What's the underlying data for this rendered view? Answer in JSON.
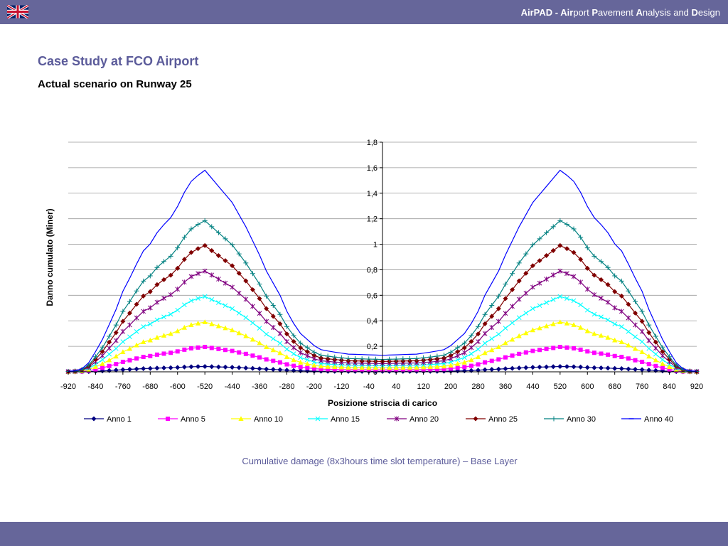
{
  "header": {
    "brand_segments": [
      {
        "text": "AirPAD - ",
        "bold": true
      },
      {
        "text": "Air",
        "bold": true
      },
      {
        "text": "port ",
        "bold": false
      },
      {
        "text": "P",
        "bold": true
      },
      {
        "text": "avement ",
        "bold": false
      },
      {
        "text": "A",
        "bold": true
      },
      {
        "text": "nalysis and ",
        "bold": false
      },
      {
        "text": "D",
        "bold": true
      },
      {
        "text": "esign",
        "bold": false
      }
    ],
    "flag_icon": "uk-flag-icon"
  },
  "page": {
    "title": "Case Study at FCO Airport",
    "subtitle": "Actual scenario on Runway 25",
    "caption": "Cumulative damage (8x3hours time slot temperature) – Base Layer"
  },
  "colors": {
    "bar": "#66669a",
    "title": "#5b5b9a"
  },
  "chart_data": {
    "type": "line",
    "xlabel": "Posizione striscia di carico",
    "ylabel": "Danno cumulato (Miner)",
    "xlim": [
      -920,
      920
    ],
    "ylim": [
      0,
      1.8
    ],
    "x_ticks": [
      -920,
      -840,
      -760,
      -680,
      -600,
      -520,
      -440,
      -360,
      -280,
      -200,
      -120,
      -40,
      40,
      120,
      200,
      280,
      360,
      440,
      520,
      600,
      680,
      760,
      840,
      920
    ],
    "y_ticks": [
      {
        "v": 0,
        "label": "0"
      },
      {
        "v": 0.2,
        "label": "0,2"
      },
      {
        "v": 0.4,
        "label": "0,4"
      },
      {
        "v": 0.6,
        "label": "0,6"
      },
      {
        "v": 0.8,
        "label": "0,8"
      },
      {
        "v": 1,
        "label": "1"
      },
      {
        "v": 1.2,
        "label": "1,2"
      },
      {
        "v": 1.4,
        "label": "1,4"
      },
      {
        "v": 1.6,
        "label": "1,6"
      },
      {
        "v": 1.8,
        "label": "1,8"
      }
    ],
    "grid": "horizontal",
    "legend_position": "bottom",
    "x_step": 20,
    "profile_x": [
      0,
      100,
      150,
      180,
      200,
      220,
      240,
      260,
      280,
      300,
      320,
      340,
      360,
      380,
      400,
      420,
      440,
      460,
      480,
      500,
      520,
      540,
      560,
      580,
      600,
      620,
      640,
      660,
      680,
      700,
      720,
      740,
      760,
      780,
      800,
      820,
      840,
      860,
      880,
      900,
      920
    ],
    "profile_y": [
      0.082,
      0.088,
      0.1,
      0.11,
      0.13,
      0.16,
      0.19,
      0.24,
      0.3,
      0.38,
      0.44,
      0.5,
      0.58,
      0.65,
      0.72,
      0.78,
      0.84,
      0.88,
      0.92,
      0.96,
      1.0,
      0.975,
      0.945,
      0.89,
      0.82,
      0.765,
      0.73,
      0.69,
      0.635,
      0.6,
      0.535,
      0.465,
      0.4,
      0.31,
      0.235,
      0.16,
      0.1,
      0.045,
      0.015,
      0.005,
      0.003
    ],
    "series": [
      {
        "name": "Anno 1",
        "peak": 0.042,
        "color": "#000080",
        "marker": "diamond"
      },
      {
        "name": "Anno 5",
        "peak": 0.195,
        "color": "#ff00ff",
        "marker": "square"
      },
      {
        "name": "Anno 10",
        "peak": 0.39,
        "color": "#ffff00",
        "marker": "triangle"
      },
      {
        "name": "Anno 15",
        "peak": 0.59,
        "color": "#00ffff",
        "marker": "x"
      },
      {
        "name": "Anno 20",
        "peak": 0.79,
        "color": "#800080",
        "marker": "star"
      },
      {
        "name": "Anno 25",
        "peak": 0.99,
        "color": "#800000",
        "marker": "diamond"
      },
      {
        "name": "Anno 30",
        "peak": 1.185,
        "color": "#008080",
        "marker": "plus"
      },
      {
        "name": "Anno 40",
        "peak": 1.58,
        "color": "#0000ff",
        "marker": "dash"
      }
    ]
  }
}
